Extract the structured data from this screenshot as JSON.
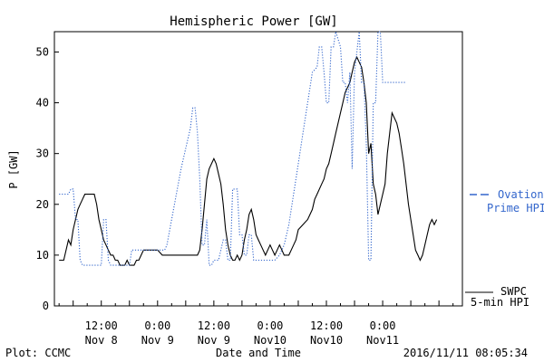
{
  "chart_data": {
    "type": "line",
    "title": "Hemispheric Power [GW]",
    "ylabel": "P [GW]",
    "xlabel": "Date and Time",
    "ylim": [
      0,
      54
    ],
    "xlim": [
      -22,
      65
    ],
    "yticks": [
      0,
      10,
      20,
      30,
      40,
      50
    ],
    "xticks": [
      {
        "x": -12,
        "line1": "12:00",
        "line2": "Nov 8"
      },
      {
        "x": 0,
        "line1": "0:00",
        "line2": "Nov 9"
      },
      {
        "x": 12,
        "line1": "12:00",
        "line2": "Nov 9"
      },
      {
        "x": 24,
        "line1": "0:00",
        "line2": "Nov10"
      },
      {
        "x": 36,
        "line1": "12:00",
        "line2": "Nov10"
      },
      {
        "x": 48,
        "line1": "0:00",
        "line2": "Nov11"
      }
    ],
    "grid": false,
    "series": [
      {
        "name": "SWPC 5-min HPI",
        "legend_line1": "SWPC",
        "legend_line2": "5-min HPI",
        "color": "#000000",
        "style": "solid",
        "points": [
          [
            -21,
            9
          ],
          [
            -20,
            9
          ],
          [
            -19.5,
            11
          ],
          [
            -19,
            13
          ],
          [
            -18.5,
            12
          ],
          [
            -18,
            15
          ],
          [
            -17.5,
            17
          ],
          [
            -17,
            19
          ],
          [
            -16.5,
            20
          ],
          [
            -16,
            21
          ],
          [
            -15.5,
            22
          ],
          [
            -14,
            22
          ],
          [
            -13.5,
            22
          ],
          [
            -13,
            20
          ],
          [
            -12.5,
            17
          ],
          [
            -12,
            15
          ],
          [
            -11.5,
            13
          ],
          [
            -11,
            12
          ],
          [
            -10.5,
            11
          ],
          [
            -10,
            10
          ],
          [
            -9.5,
            10
          ],
          [
            -9,
            9
          ],
          [
            -8.5,
            9
          ],
          [
            -8,
            8
          ],
          [
            -7,
            8
          ],
          [
            -6.5,
            9
          ],
          [
            -6,
            8
          ],
          [
            -5,
            8
          ],
          [
            -4.5,
            9
          ],
          [
            -4,
            9
          ],
          [
            -3.5,
            10
          ],
          [
            -3,
            11
          ],
          [
            -1.5,
            11
          ],
          [
            0,
            11
          ],
          [
            1,
            10
          ],
          [
            3,
            10
          ],
          [
            5,
            10
          ],
          [
            7,
            10
          ],
          [
            8.5,
            10
          ],
          [
            9,
            11
          ],
          [
            9.5,
            15
          ],
          [
            10,
            20
          ],
          [
            10.5,
            25
          ],
          [
            11,
            27
          ],
          [
            11.5,
            28
          ],
          [
            12,
            29
          ],
          [
            12.5,
            28
          ],
          [
            13,
            26
          ],
          [
            13.5,
            24
          ],
          [
            14,
            20
          ],
          [
            14.5,
            15
          ],
          [
            15,
            12
          ],
          [
            15.5,
            10
          ],
          [
            16,
            9
          ],
          [
            16.5,
            9
          ],
          [
            17,
            10
          ],
          [
            17.5,
            9
          ],
          [
            18,
            10
          ],
          [
            18.5,
            13
          ],
          [
            19,
            15
          ],
          [
            19.5,
            18
          ],
          [
            20,
            19
          ],
          [
            20.5,
            17
          ],
          [
            21,
            14
          ],
          [
            21.5,
            13
          ],
          [
            22,
            12
          ],
          [
            22.5,
            11
          ],
          [
            23,
            10
          ],
          [
            23.5,
            11
          ],
          [
            24,
            12
          ],
          [
            24.5,
            11
          ],
          [
            25,
            10
          ],
          [
            25.5,
            11
          ],
          [
            26,
            12
          ],
          [
            26.5,
            11
          ],
          [
            27,
            10
          ],
          [
            28,
            10
          ],
          [
            28.5,
            11
          ],
          [
            29,
            12
          ],
          [
            29.5,
            13
          ],
          [
            30,
            15
          ],
          [
            31,
            16
          ],
          [
            32,
            17
          ],
          [
            32.5,
            18
          ],
          [
            33,
            19
          ],
          [
            33.5,
            21
          ],
          [
            34,
            22
          ],
          [
            35,
            24
          ],
          [
            35.5,
            25
          ],
          [
            36,
            27
          ],
          [
            36.5,
            28
          ],
          [
            37,
            30
          ],
          [
            37.5,
            32
          ],
          [
            38,
            34
          ],
          [
            38.5,
            36
          ],
          [
            39,
            38
          ],
          [
            39.5,
            40
          ],
          [
            40,
            42
          ],
          [
            40.5,
            43
          ],
          [
            41,
            44
          ],
          [
            41.5,
            46
          ],
          [
            42,
            48
          ],
          [
            42.5,
            49
          ],
          [
            43,
            48
          ],
          [
            43.5,
            47
          ],
          [
            44,
            44
          ],
          [
            44.5,
            40
          ],
          [
            45,
            30
          ],
          [
            45.5,
            32
          ],
          [
            46,
            24
          ],
          [
            46.5,
            22
          ],
          [
            47,
            18
          ],
          [
            47.5,
            20
          ],
          [
            48,
            22
          ],
          [
            48.5,
            24
          ],
          [
            49,
            30
          ],
          [
            49.5,
            34
          ],
          [
            50,
            38
          ],
          [
            50.5,
            37
          ],
          [
            51,
            36
          ],
          [
            51.5,
            34
          ],
          [
            52,
            31
          ],
          [
            52.5,
            28
          ],
          [
            53,
            24
          ],
          [
            53.5,
            20
          ],
          [
            54,
            17
          ],
          [
            54.5,
            14
          ],
          [
            55,
            11
          ],
          [
            55.5,
            10
          ],
          [
            56,
            9
          ],
          [
            56.5,
            10
          ],
          [
            57,
            12
          ],
          [
            57.5,
            14
          ],
          [
            58,
            16
          ],
          [
            58.5,
            17
          ],
          [
            59,
            16
          ],
          [
            59.5,
            17
          ]
        ]
      },
      {
        "name": "Ovation Prime HPI",
        "legend_line1": "Ovation",
        "legend_line2": "Prime HPI",
        "color": "#3366cc",
        "style": "dotted",
        "points": [
          [
            -21,
            22
          ],
          [
            -19,
            22
          ],
          [
            -18.5,
            23
          ],
          [
            -18,
            23
          ],
          [
            -17.5,
            17
          ],
          [
            -17,
            17
          ],
          [
            -16.5,
            9
          ],
          [
            -16,
            8
          ],
          [
            -15,
            8
          ],
          [
            -13,
            8
          ],
          [
            -12,
            8
          ],
          [
            -11.5,
            17
          ],
          [
            -11,
            17
          ],
          [
            -10.5,
            9
          ],
          [
            -10,
            8
          ],
          [
            -9,
            8
          ],
          [
            -7,
            8
          ],
          [
            -6,
            8
          ],
          [
            -5.5,
            11
          ],
          [
            -3,
            11
          ],
          [
            0,
            11
          ],
          [
            1.5,
            11
          ],
          [
            2,
            12
          ],
          [
            3,
            17
          ],
          [
            4,
            22
          ],
          [
            5,
            27
          ],
          [
            6,
            31
          ],
          [
            7,
            35
          ],
          [
            7.5,
            39
          ],
          [
            8,
            39
          ],
          [
            8.5,
            34
          ],
          [
            9,
            25
          ],
          [
            9.5,
            12
          ],
          [
            10,
            12
          ],
          [
            10.5,
            17
          ],
          [
            11,
            8
          ],
          [
            11.5,
            8
          ],
          [
            12,
            9
          ],
          [
            13,
            9
          ],
          [
            14,
            13
          ],
          [
            14.5,
            13
          ],
          [
            15,
            9
          ],
          [
            15.5,
            9
          ],
          [
            16,
            23
          ],
          [
            17,
            23
          ],
          [
            17.5,
            14
          ],
          [
            18,
            14
          ],
          [
            18.5,
            10
          ],
          [
            19,
            10
          ],
          [
            19.5,
            14
          ],
          [
            20,
            14
          ],
          [
            20.5,
            9
          ],
          [
            25,
            9
          ],
          [
            26,
            10
          ],
          [
            27,
            12
          ],
          [
            28,
            16
          ],
          [
            29,
            22
          ],
          [
            30,
            28
          ],
          [
            31,
            34
          ],
          [
            32,
            40
          ],
          [
            33,
            46
          ],
          [
            34,
            47
          ],
          [
            34.5,
            51
          ],
          [
            35,
            51
          ],
          [
            35.5,
            46
          ],
          [
            36,
            40
          ],
          [
            36.5,
            40
          ],
          [
            37,
            51
          ],
          [
            37.5,
            51
          ],
          [
            38,
            54
          ],
          [
            39,
            51
          ],
          [
            39.5,
            44
          ],
          [
            40,
            44
          ],
          [
            40.5,
            40
          ],
          [
            41,
            46
          ],
          [
            41.5,
            27
          ],
          [
            42,
            46
          ],
          [
            43,
            54
          ],
          [
            43.5,
            44
          ],
          [
            44,
            44
          ],
          [
            44.5,
            32
          ],
          [
            45,
            9
          ],
          [
            45.5,
            9
          ],
          [
            46,
            40
          ],
          [
            46.5,
            40
          ],
          [
            47,
            54
          ],
          [
            47.5,
            54
          ],
          [
            48,
            44
          ],
          [
            53,
            44
          ]
        ]
      }
    ]
  },
  "footer": {
    "plot_credit": "Plot: CCMC",
    "timestamp": "2016/11/11 08:05:34"
  }
}
